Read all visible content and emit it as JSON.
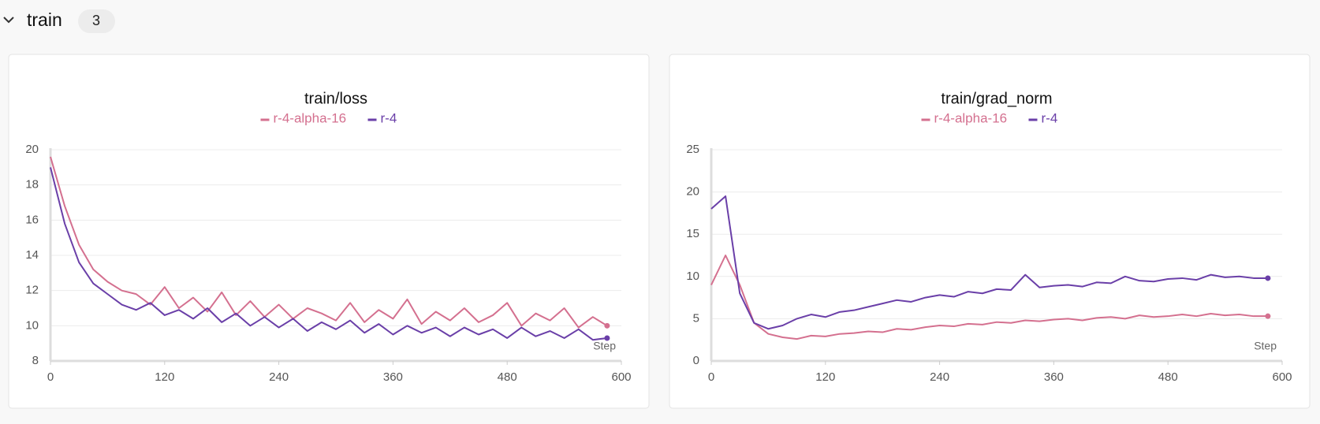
{
  "header": {
    "title": "train",
    "count": "3"
  },
  "chart_data": [
    {
      "type": "line",
      "title": "train/loss",
      "xlabel": "Step",
      "x": [
        0,
        15,
        30,
        45,
        60,
        75,
        90,
        105,
        120,
        135,
        150,
        165,
        180,
        195,
        210,
        225,
        240,
        255,
        270,
        285,
        300,
        315,
        330,
        345,
        360,
        375,
        390,
        405,
        420,
        435,
        450,
        465,
        480,
        495,
        510,
        525,
        540,
        555,
        570,
        585
      ],
      "series": [
        {
          "name": "r-4-alpha-16",
          "color": "#d4708f",
          "values": [
            19.6,
            16.8,
            14.6,
            13.2,
            12.5,
            12.0,
            11.8,
            11.2,
            12.2,
            11.0,
            11.6,
            10.8,
            11.9,
            10.6,
            11.4,
            10.5,
            11.2,
            10.4,
            11.0,
            10.7,
            10.3,
            11.3,
            10.2,
            10.9,
            10.4,
            11.5,
            10.1,
            10.8,
            10.3,
            11.0,
            10.2,
            10.6,
            11.3,
            10.0,
            10.7,
            10.3,
            11.0,
            9.9,
            10.5,
            10.0
          ]
        },
        {
          "name": "r-4",
          "color": "#6a3fa8",
          "values": [
            19.0,
            15.8,
            13.6,
            12.4,
            11.8,
            11.2,
            10.9,
            11.3,
            10.6,
            10.9,
            10.4,
            11.0,
            10.2,
            10.7,
            10.0,
            10.5,
            9.9,
            10.4,
            9.7,
            10.2,
            9.8,
            10.3,
            9.6,
            10.1,
            9.5,
            10.0,
            9.6,
            9.9,
            9.4,
            9.9,
            9.5,
            9.8,
            9.3,
            9.9,
            9.4,
            9.7,
            9.3,
            9.8,
            9.2,
            9.3
          ]
        }
      ],
      "xlim": [
        0,
        600
      ],
      "xticks": [
        0,
        120,
        240,
        360,
        480,
        600
      ],
      "ylim": [
        8,
        20
      ],
      "yticks": [
        8,
        10,
        12,
        14,
        16,
        18,
        20
      ],
      "grid": true
    },
    {
      "type": "line",
      "title": "train/grad_norm",
      "xlabel": "Step",
      "x": [
        0,
        15,
        30,
        45,
        60,
        75,
        90,
        105,
        120,
        135,
        150,
        165,
        180,
        195,
        210,
        225,
        240,
        255,
        270,
        285,
        300,
        315,
        330,
        345,
        360,
        375,
        390,
        405,
        420,
        435,
        450,
        465,
        480,
        495,
        510,
        525,
        540,
        555,
        570,
        585
      ],
      "series": [
        {
          "name": "r-4-alpha-16",
          "color": "#d4708f",
          "values": [
            9,
            12.5,
            9,
            4.5,
            3.2,
            2.8,
            2.6,
            3.0,
            2.9,
            3.2,
            3.3,
            3.5,
            3.4,
            3.8,
            3.7,
            4.0,
            4.2,
            4.1,
            4.4,
            4.3,
            4.6,
            4.5,
            4.8,
            4.7,
            4.9,
            5.0,
            4.8,
            5.1,
            5.2,
            5.0,
            5.4,
            5.2,
            5.3,
            5.5,
            5.3,
            5.6,
            5.4,
            5.5,
            5.3,
            5.3
          ]
        },
        {
          "name": "r-4",
          "color": "#6a3fa8",
          "values": [
            18,
            19.5,
            8,
            4.5,
            3.8,
            4.2,
            5.0,
            5.5,
            5.2,
            5.8,
            6.0,
            6.4,
            6.8,
            7.2,
            7.0,
            7.5,
            7.8,
            7.6,
            8.2,
            8.0,
            8.5,
            8.4,
            10.2,
            8.7,
            8.9,
            9.0,
            8.8,
            9.3,
            9.2,
            10.0,
            9.5,
            9.4,
            9.7,
            9.8,
            9.6,
            10.2,
            9.9,
            10.0,
            9.8,
            9.8
          ]
        }
      ],
      "xlim": [
        0,
        600
      ],
      "xticks": [
        0,
        120,
        240,
        360,
        480,
        600
      ],
      "ylim": [
        0,
        25
      ],
      "yticks": [
        0,
        5,
        10,
        15,
        20,
        25
      ],
      "grid": true
    }
  ]
}
